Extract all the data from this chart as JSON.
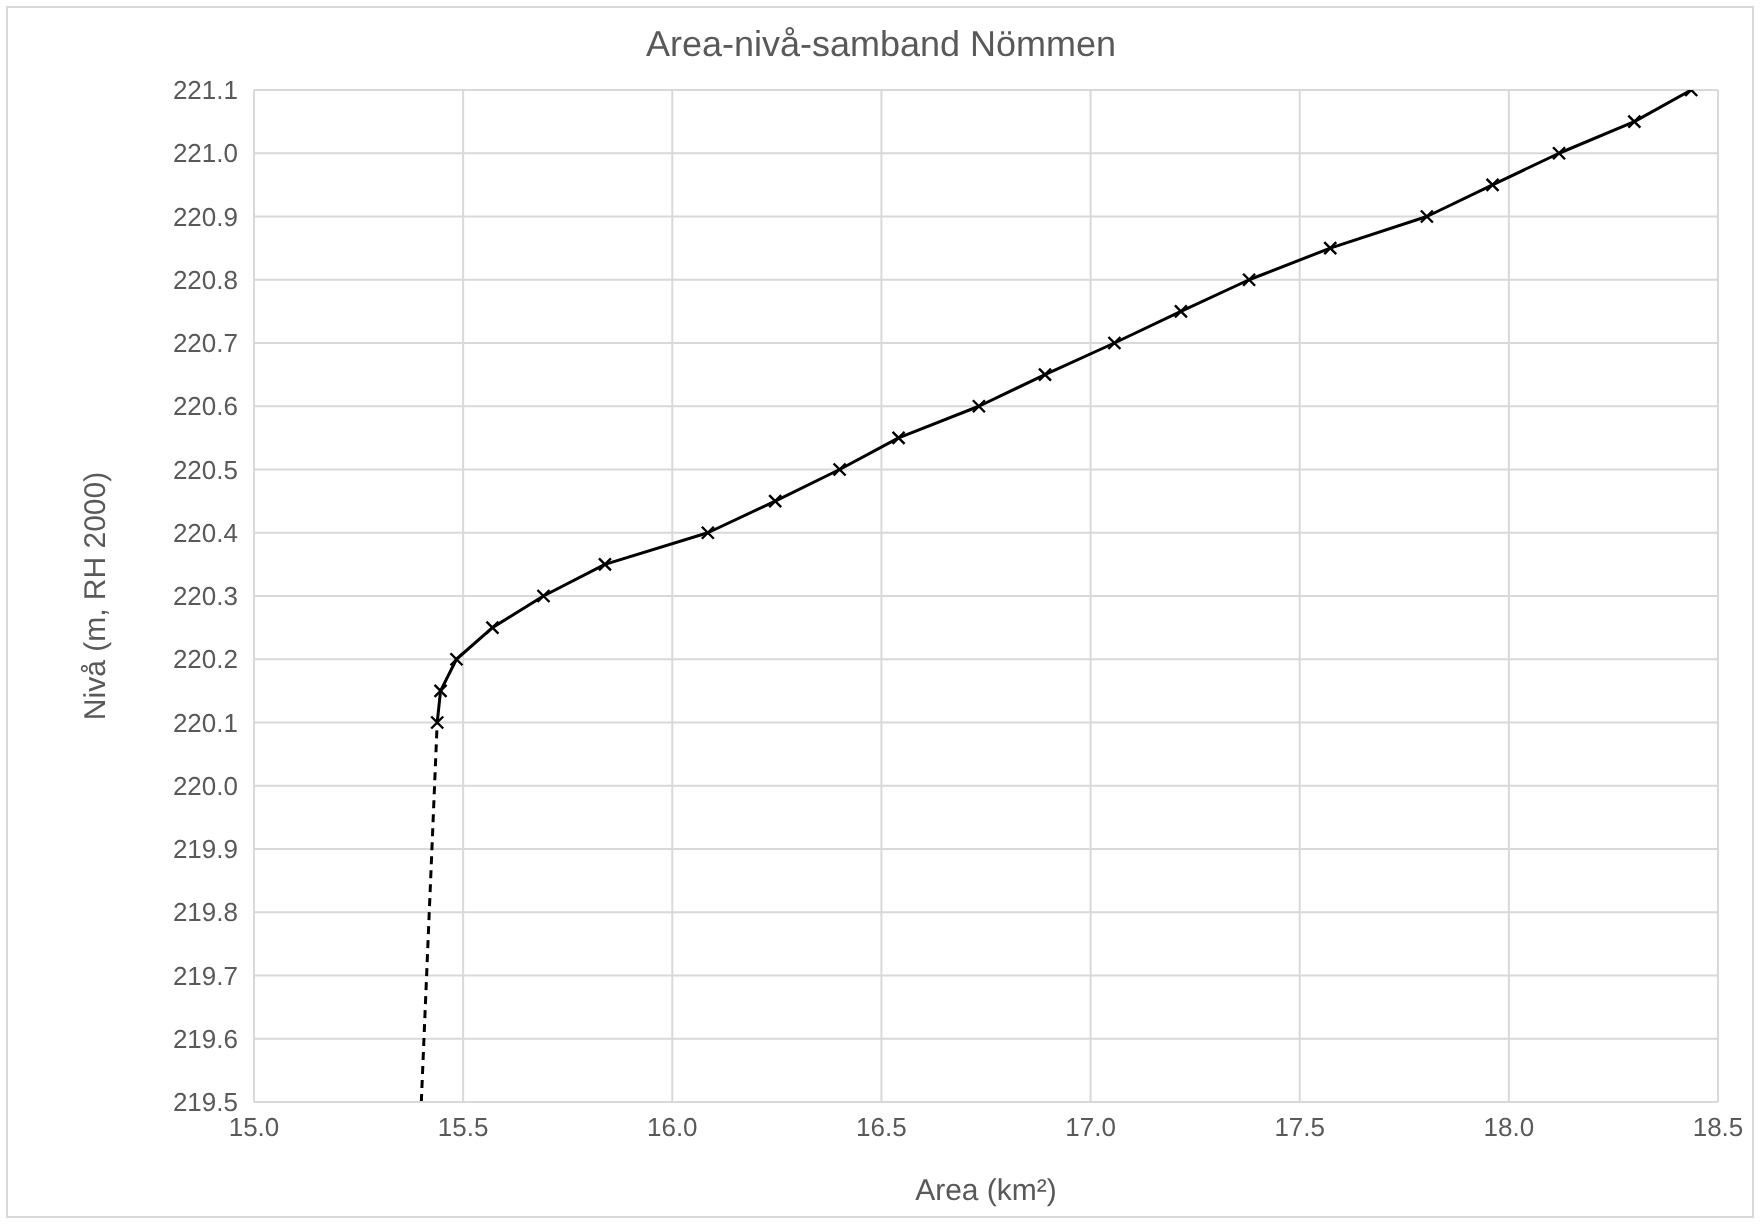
{
  "chart_data": {
    "type": "line",
    "title": "Area-nivå-samband Nömmen",
    "xlabel": "Area (km²)",
    "ylabel": "Nivå (m, RH 2000)",
    "xlim": [
      15.0,
      18.5
    ],
    "xticks": [
      {
        "value": 15.0,
        "label": "15.0"
      },
      {
        "value": 15.5,
        "label": "15.5"
      },
      {
        "value": 16.0,
        "label": "16.0"
      },
      {
        "value": 16.5,
        "label": "16.5"
      },
      {
        "value": 17.0,
        "label": "17.0"
      },
      {
        "value": 17.5,
        "label": "17.5"
      },
      {
        "value": 18.0,
        "label": "18.0"
      },
      {
        "value": 18.5,
        "label": "18.5"
      }
    ],
    "ylim": [
      219.5,
      221.1
    ],
    "yticks": [
      219.5,
      219.6,
      219.7,
      219.8,
      219.9,
      {
        "value": 220.0,
        "label": "220.0"
      },
      220.1,
      220.2,
      220.3,
      220.4,
      220.5,
      220.6,
      220.7,
      220.8,
      220.9,
      {
        "value": 221.0,
        "label": "221.0"
      },
      221.1
    ],
    "grid": true,
    "series": [
      {
        "color": "#000000",
        "marker": "cross",
        "line_style": "solid",
        "x": [
          15.438,
          15.446,
          15.484,
          15.57,
          15.692,
          15.839,
          16.085,
          16.246,
          16.4,
          16.541,
          16.733,
          16.891,
          17.057,
          17.216,
          17.379,
          17.573,
          17.804,
          17.961,
          18.12,
          18.3,
          18.436
        ],
        "values": [
          220.1,
          220.15,
          220.2,
          220.25,
          220.3,
          220.35,
          220.4,
          220.45,
          220.5,
          220.55,
          220.6,
          220.65,
          220.7,
          220.75,
          220.8,
          220.85,
          220.9,
          220.95,
          221.0,
          221.05,
          221.1
        ]
      },
      {
        "color": "#000000",
        "marker": "none",
        "line_style": "dashed",
        "x": [
          15.4,
          15.438
        ],
        "values": [
          219.5,
          220.1
        ]
      }
    ]
  }
}
